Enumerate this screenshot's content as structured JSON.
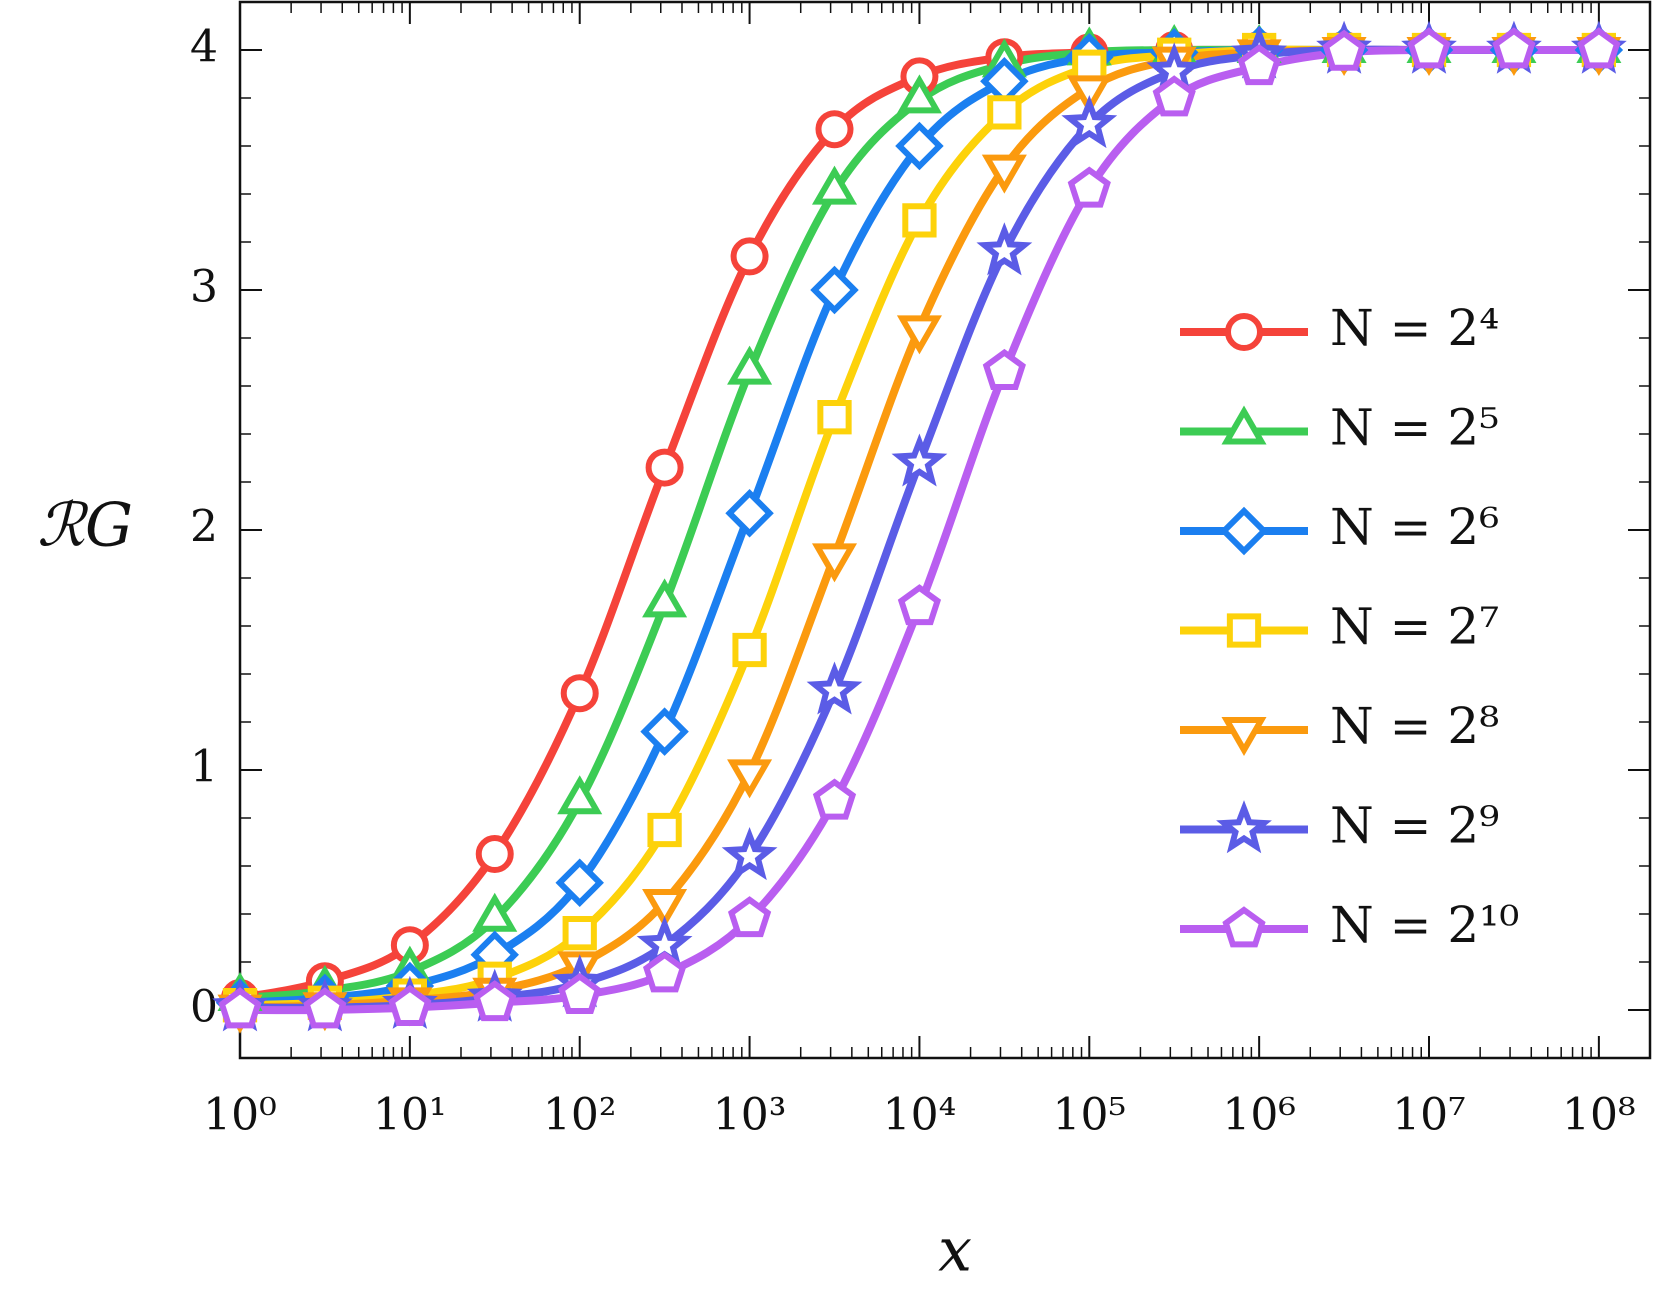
{
  "chart_data": {
    "type": "line",
    "x_label": "x",
    "y_label": "ℛG",
    "x": [
      1,
      3.16,
      10,
      31.6,
      100,
      316,
      1000,
      3162,
      10000,
      31623,
      100000,
      316228,
      1000000,
      3162278,
      10000000,
      31622777,
      100000000
    ],
    "xlim": [
      1,
      200000000
    ],
    "ylim": [
      -0.2,
      4.2
    ],
    "xscale": "log",
    "xticks": [
      {
        "value": 1,
        "label": "10⁰"
      },
      {
        "value": 10,
        "label": "10¹"
      },
      {
        "value": 100,
        "label": "10²"
      },
      {
        "value": 1000,
        "label": "10³"
      },
      {
        "value": 10000,
        "label": "10⁴"
      },
      {
        "value": 100000,
        "label": "10⁵"
      },
      {
        "value": 1000000,
        "label": "10⁶"
      },
      {
        "value": 10000000,
        "label": "10⁷"
      },
      {
        "value": 100000000,
        "label": "10⁸"
      }
    ],
    "yticks": [
      0,
      1,
      2,
      3,
      4
    ],
    "legend": "right",
    "series": [
      {
        "name": "N = 2⁴",
        "color": "#f5433a",
        "marker": "circle",
        "values": [
          0.05,
          0.12,
          0.27,
          0.65,
          1.32,
          2.26,
          3.14,
          3.67,
          3.89,
          3.97,
          3.99,
          4,
          4,
          4,
          4,
          4,
          4
        ]
      },
      {
        "name": "N = 2⁵",
        "color": "#3ccc54",
        "marker": "triangle-up",
        "values": [
          0.05,
          0.08,
          0.16,
          0.38,
          0.87,
          1.69,
          2.66,
          3.41,
          3.79,
          3.94,
          3.99,
          4,
          4,
          4,
          4,
          4,
          4
        ]
      },
      {
        "name": "N = 2⁶",
        "color": "#1b7ff0",
        "marker": "diamond",
        "values": [
          0.03,
          0.05,
          0.1,
          0.23,
          0.53,
          1.16,
          2.07,
          3.0,
          3.6,
          3.87,
          3.97,
          3.99,
          4,
          4,
          4,
          4,
          4
        ]
      },
      {
        "name": "N = 2⁷",
        "color": "#fdd20a",
        "marker": "square",
        "values": [
          0.02,
          0.03,
          0.06,
          0.13,
          0.32,
          0.75,
          1.5,
          2.47,
          3.29,
          3.74,
          3.93,
          3.98,
          4,
          4,
          4,
          4,
          4
        ]
      },
      {
        "name": "N = 2⁸",
        "color": "#fb9a0e",
        "marker": "triangle-down",
        "values": [
          0.01,
          0.02,
          0.04,
          0.08,
          0.19,
          0.45,
          0.99,
          1.89,
          2.84,
          3.51,
          3.84,
          3.96,
          3.99,
          4,
          4,
          4,
          4
        ]
      },
      {
        "name": "N = 2⁹",
        "color": "#5b5ce6",
        "marker": "star",
        "values": [
          0.01,
          0.01,
          0.02,
          0.05,
          0.11,
          0.27,
          0.64,
          1.33,
          2.28,
          3.16,
          3.69,
          3.91,
          3.98,
          4,
          4,
          4,
          4
        ]
      },
      {
        "name": "N = 2¹⁰",
        "color": "#b95ef0",
        "marker": "pentagon",
        "values": [
          0,
          0,
          0.01,
          0.03,
          0.06,
          0.15,
          0.38,
          0.87,
          1.68,
          2.66,
          3.42,
          3.8,
          3.93,
          3.99,
          4,
          4,
          4
        ]
      }
    ]
  }
}
